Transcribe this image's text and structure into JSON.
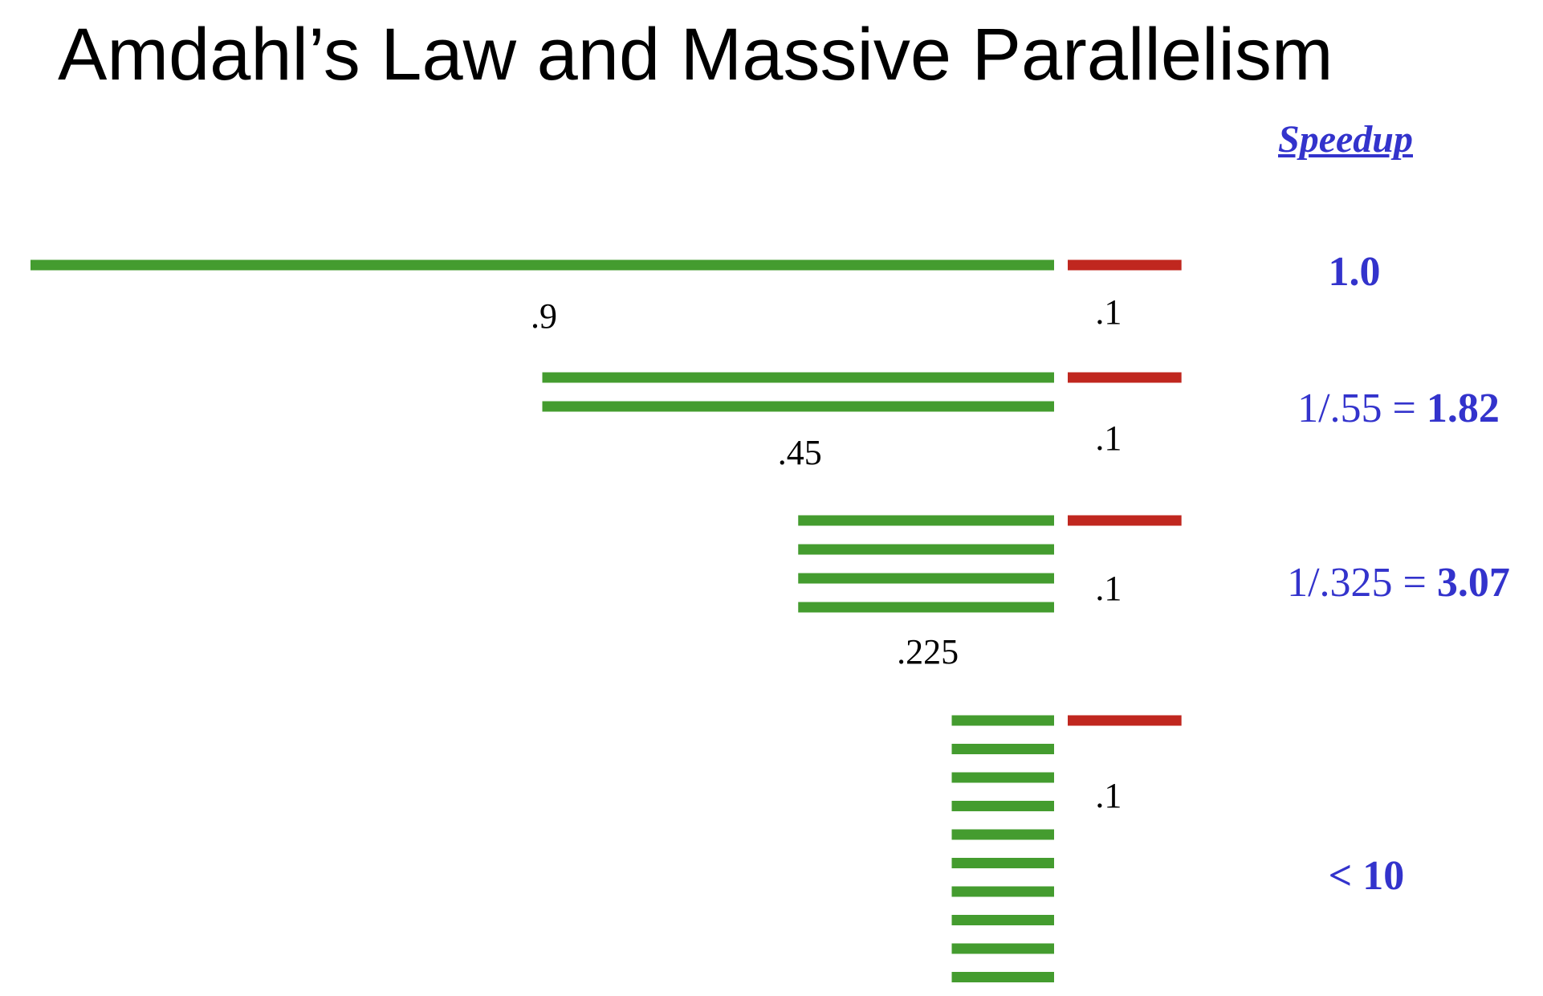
{
  "title": "Amdahl’s Law and Massive Parallelism",
  "speedup_header": "Speedup",
  "colors": {
    "parallel": "#449c2f",
    "serial": "#c0271f",
    "speedup_text": "#3333cc",
    "fraction_label": "#000000"
  },
  "rows": [
    {
      "processors": 1,
      "parallel_fraction": 0.9,
      "serial_fraction": 0.1,
      "parallel_label": ".9",
      "serial_label": ".1",
      "speedup": {
        "prefix": "",
        "value": "1.0"
      }
    },
    {
      "processors": 2,
      "parallel_fraction": 0.45,
      "serial_fraction": 0.1,
      "parallel_label": ".45",
      "serial_label": ".1",
      "speedup": {
        "prefix": "1/.55 = ",
        "value": "1.82"
      }
    },
    {
      "processors": 4,
      "parallel_fraction": 0.225,
      "serial_fraction": 0.1,
      "parallel_label": ".225",
      "serial_label": ".1",
      "speedup": {
        "prefix": "1/.325 = ",
        "value": "3.07"
      }
    },
    {
      "processors": 10,
      "parallel_fraction": 0.09,
      "serial_fraction": 0.1,
      "parallel_label": "",
      "serial_label": ".1",
      "speedup": {
        "prefix": "",
        "value": "< 10"
      }
    }
  ]
}
